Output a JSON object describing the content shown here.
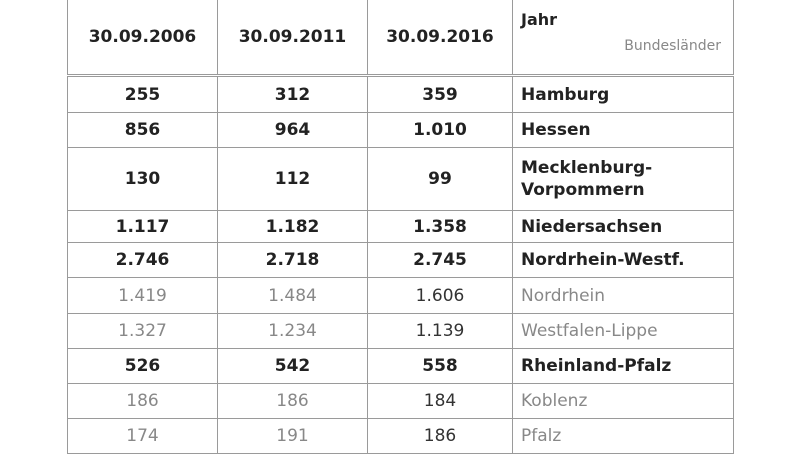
{
  "header": {
    "columns": [
      "30.09.2006",
      "30.09.2011",
      "30.09.2016"
    ],
    "year_label": "Jahr",
    "region_label": "Bundesländer"
  },
  "rows": [
    {
      "values": [
        "255",
        "312",
        "359"
      ],
      "label": "Hamburg"
    },
    {
      "values": [
        "856",
        "964",
        "1.010"
      ],
      "label": "Hessen"
    },
    {
      "values": [
        "130",
        "112",
        "99"
      ],
      "label": "Mecklenburg-Vorpommern"
    },
    {
      "values": [
        "1.117",
        "1.182",
        "1.358"
      ],
      "label": "Niedersachsen"
    },
    {
      "values": [
        "2.746",
        "2.718",
        "2.745"
      ],
      "label": "Nordrhein-Westf."
    },
    {
      "values": [
        "1.419",
        "1.484",
        "1.606"
      ],
      "label": "Nordrhein"
    },
    {
      "values": [
        "1.327",
        "1.234",
        "1.139"
      ],
      "label": "Westfalen-Lippe"
    },
    {
      "values": [
        "526",
        "542",
        "558"
      ],
      "label": "Rheinland-Pfalz"
    },
    {
      "values": [
        "186",
        "186",
        "184"
      ],
      "label": "Koblenz"
    },
    {
      "values": [
        "174",
        "191",
        "186"
      ],
      "label": "Pfalz"
    }
  ]
}
